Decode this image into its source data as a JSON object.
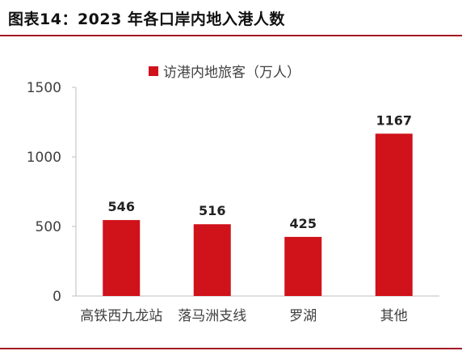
{
  "figure": {
    "title": "图表14：2023 年各口岸内地入港人数"
  },
  "colors": {
    "bar": "#d0121b",
    "rule": "#a31a24",
    "axis": "#bfbfbf",
    "text": "#404040",
    "label": "#222222"
  },
  "chart_data": {
    "type": "bar",
    "categories": [
      "高铁西九龙站",
      "落马洲支线",
      "罗湖",
      "其他"
    ],
    "series": [
      {
        "name": "访港内地旅客（万人）",
        "values": [
          546,
          516,
          425,
          1167
        ]
      }
    ],
    "data_labels": [
      "546",
      "516",
      "425",
      "1167"
    ],
    "ylim": [
      0,
      1500
    ],
    "yticks": [
      0,
      500,
      1000,
      1500
    ],
    "ytick_labels": [
      "0",
      "500",
      "1000",
      "1500"
    ],
    "grid": false,
    "legend_position": "top-center"
  }
}
